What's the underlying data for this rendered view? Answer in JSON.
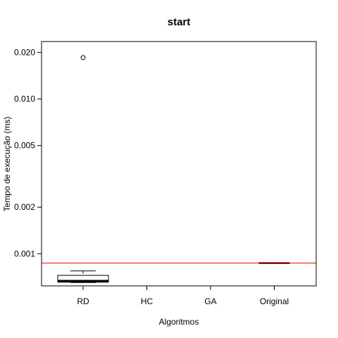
{
  "chart_data": {
    "type": "box",
    "title": "start",
    "xlabel": "Algoritmos",
    "ylabel": "Tempo de execução (ms)",
    "y_scale": "log",
    "ylim": [
      0.00062,
      0.0235
    ],
    "y_ticks": [
      0.001,
      0.002,
      0.005,
      0.01,
      0.02
    ],
    "y_tick_labels": [
      "0.001",
      "0.002",
      "0.005",
      "0.010",
      "0.020"
    ],
    "categories": [
      "RD",
      "HC",
      "GA",
      "Original"
    ],
    "boxes": [
      {
        "category": "RD",
        "min": 0.000652,
        "q1": 0.000655,
        "median": 0.000667,
        "q3": 0.000725,
        "max": 0.000775,
        "outliers": [
          0.0185
        ]
      },
      {
        "category": "HC"
      },
      {
        "category": "GA"
      },
      {
        "category": "Original",
        "min": 0.00087,
        "q1": 0.00087,
        "median": 0.00087,
        "q3": 0.00087,
        "max": 0.00087,
        "outliers": []
      }
    ],
    "reference_line": {
      "y": 0.00087,
      "color": "#ff0000"
    },
    "median_color_original": "#8b0000",
    "grid": false,
    "legend": "none"
  }
}
